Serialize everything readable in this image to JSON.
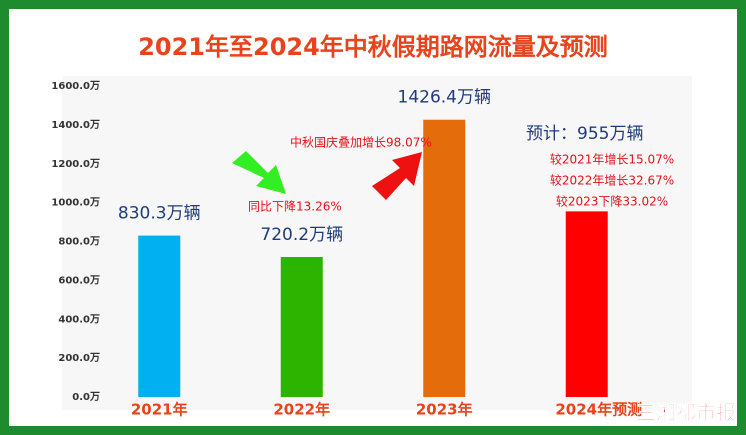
{
  "chart_data": {
    "type": "bar",
    "title": "2021年至2024年中秋假期路网流量及预测",
    "categories": [
      "2021年",
      "2022年",
      "2023年",
      "2024年预测"
    ],
    "values": [
      830.3,
      720.2,
      1426.4,
      955
    ],
    "value_labels": [
      "830.3万辆",
      "720.2万辆",
      "1426.4万辆",
      "预计：955万辆"
    ],
    "colors": [
      "#00b0f0",
      "#2db400",
      "#e46c0a",
      "#ff0000"
    ],
    "ylim": [
      0,
      1600
    ],
    "yticks": [
      {
        "value": 0,
        "label": "0.0万"
      },
      {
        "value": 200,
        "label": "200.0万"
      },
      {
        "value": 400,
        "label": "400.0万"
      },
      {
        "value": 600,
        "label": "600.0万"
      },
      {
        "value": 800,
        "label": "800.0万"
      },
      {
        "value": 1000,
        "label": "1000.0万"
      },
      {
        "value": 1200,
        "label": "1200.0万"
      },
      {
        "value": 1400,
        "label": "1400.0万"
      },
      {
        "value": 1600,
        "label": "1600.0万"
      }
    ],
    "grid": false,
    "annotations": [
      "同比下降13.26%",
      "中秋国庆叠加增长98.07%",
      "较2021年增长15.07%",
      "较2022年增长32.67%",
      "较2023下降33.02%"
    ],
    "watermark": "三湘都市报"
  }
}
